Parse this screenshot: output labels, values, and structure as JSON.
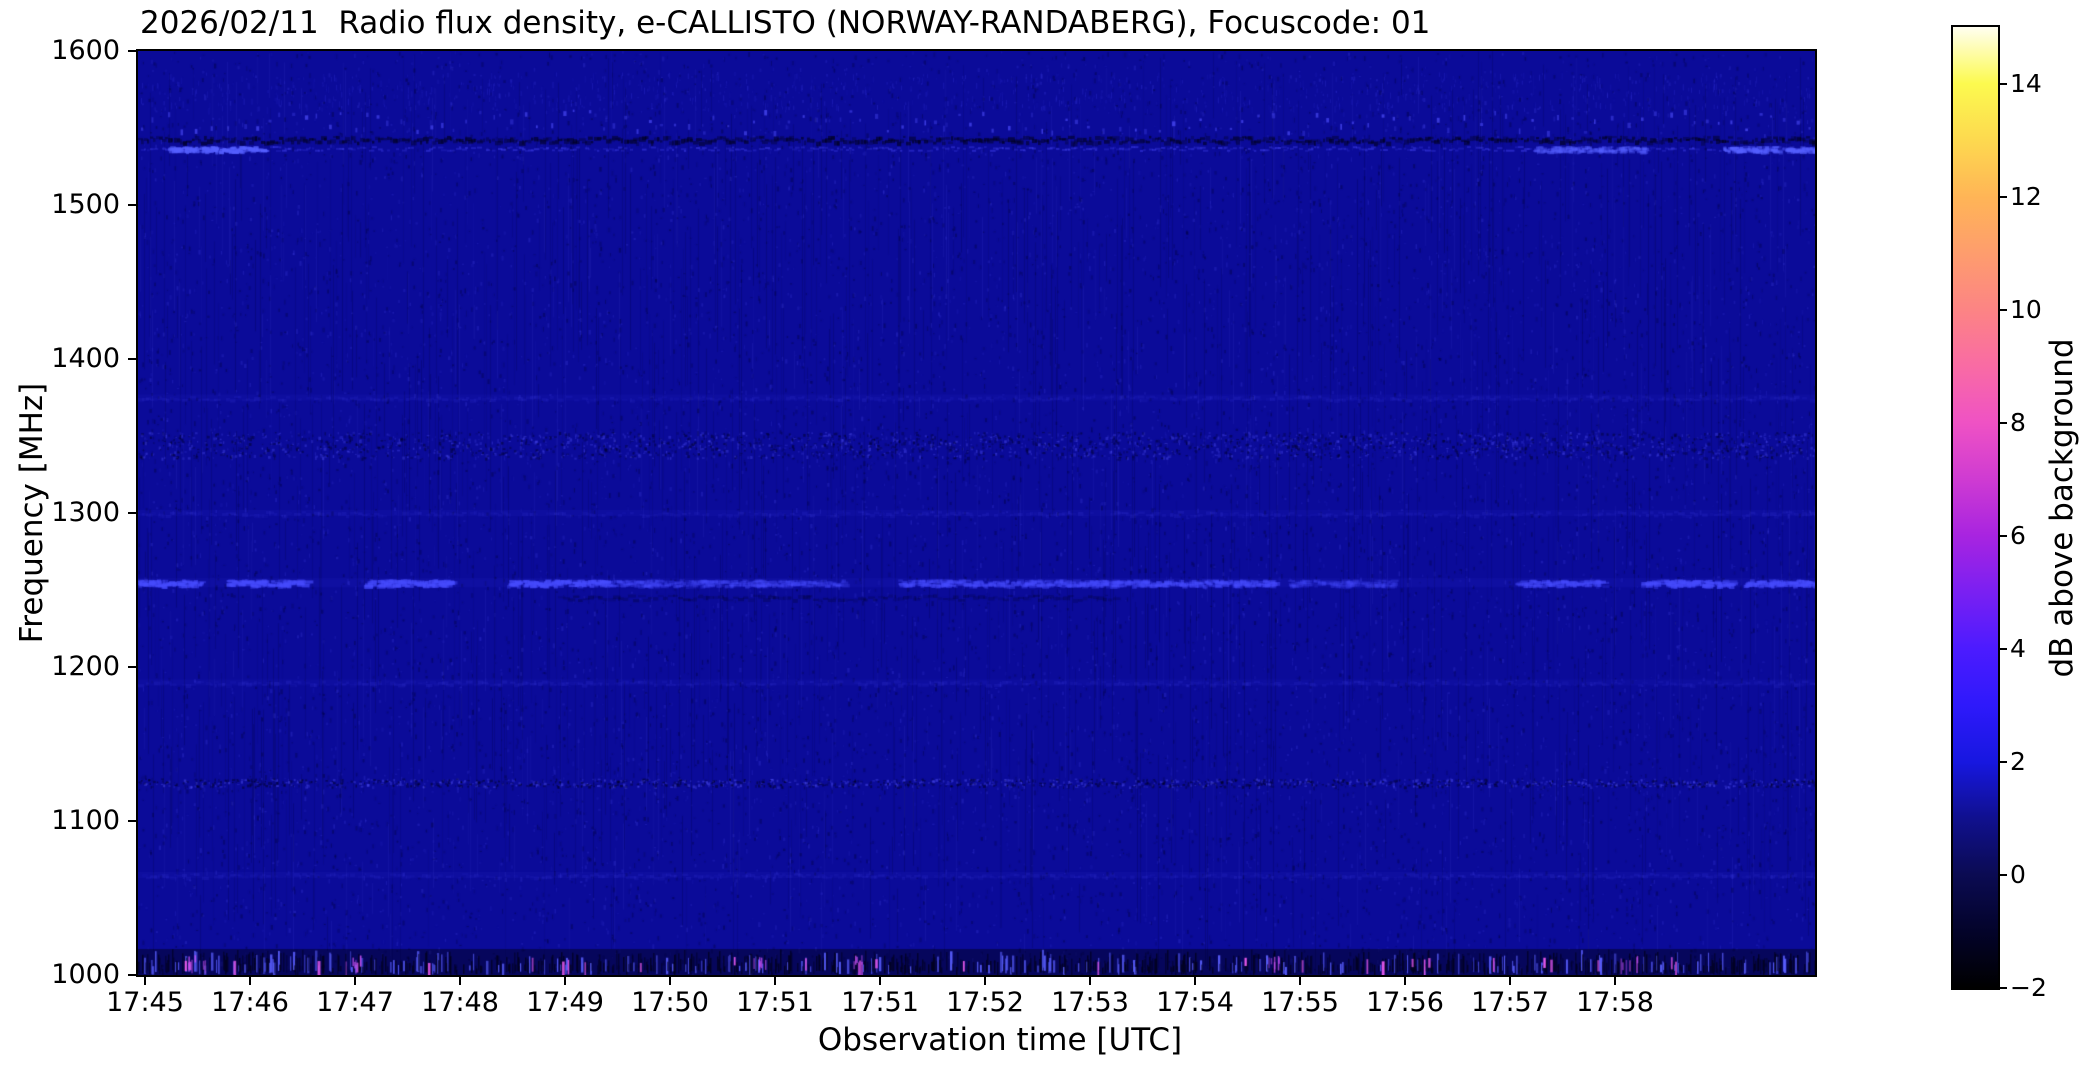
{
  "chart_data": {
    "type": "heatmap",
    "title": "2026/02/11  Radio flux density, e-CALLISTO (NORWAY-RANDABERG), Focuscode: 01",
    "date": "2026/02/11",
    "station": "NORWAY-RANDABERG",
    "focuscode": "01",
    "xlabel": "Observation time [UTC]",
    "ylabel": "Frequency [MHz]",
    "x_tick_labels": [
      "17:45",
      "17:46",
      "17:47",
      "17:48",
      "17:49",
      "17:50",
      "17:51",
      "17:51",
      "17:52",
      "17:53",
      "17:54",
      "17:55",
      "17:56",
      "17:57",
      "17:58"
    ],
    "y_tick_labels": [
      "1600",
      "1500",
      "1400",
      "1300",
      "1200",
      "1100",
      "1000"
    ],
    "ylim": [
      1000,
      1600
    ],
    "grid": false,
    "legend": null,
    "colors": {
      "plot_background": "#0b0b99",
      "noise_dark": "#00002d",
      "noise_bright": "#4646f0",
      "rfi_magenta": "#eb5af0",
      "axis": "#000000"
    },
    "colorbar": {
      "label": "dB above background",
      "range": [
        -2,
        15
      ],
      "ticks": [
        {
          "value": 14,
          "label": "14"
        },
        {
          "value": 12,
          "label": "12"
        },
        {
          "value": 10,
          "label": "10"
        },
        {
          "value": 8,
          "label": "8"
        },
        {
          "value": 6,
          "label": "6"
        },
        {
          "value": 4,
          "label": "4"
        },
        {
          "value": 2,
          "label": "2"
        },
        {
          "value": 0,
          "label": "0"
        },
        {
          "value": -2,
          "label": "−2"
        }
      ],
      "colormap": "gnuplot2-like",
      "stops": [
        [
          -2,
          "#000000"
        ],
        [
          -1,
          "#03032a"
        ],
        [
          0,
          "#0b0b52"
        ],
        [
          1,
          "#10108e"
        ],
        [
          2,
          "#1717e0"
        ],
        [
          3,
          "#2e19fb"
        ],
        [
          4,
          "#4c1bff"
        ],
        [
          5,
          "#7a20f2"
        ],
        [
          6,
          "#a824e0"
        ],
        [
          7,
          "#cf3bd2"
        ],
        [
          8,
          "#ef52c4"
        ],
        [
          9,
          "#f96ba4"
        ],
        [
          10,
          "#fc8484"
        ],
        [
          11,
          "#fe9d6d"
        ],
        [
          12,
          "#ffb556"
        ],
        [
          13,
          "#fdd94f"
        ],
        [
          14,
          "#fcfa4f"
        ],
        [
          15,
          "#fffef0"
        ]
      ]
    },
    "background_level_db": 0.9,
    "rfi_bands": [
      {
        "freq_mhz": 1555,
        "kind": "periodic-speckles",
        "level_db": 2.5
      },
      {
        "freq_mhz": 1543,
        "kind": "dark-band",
        "level_db": -0.5
      },
      {
        "freq_mhz": 1537,
        "kind": "intermittent-line",
        "level_db": 3.0
      },
      {
        "freq_mhz": 1375,
        "kind": "faint-line",
        "level_db": 1.5
      },
      {
        "freq_mhz": 1345,
        "kind": "speckle-band",
        "level_db": 2.0
      },
      {
        "freq_mhz": 1300,
        "kind": "faint-line",
        "level_db": 1.2
      },
      {
        "freq_mhz": 1255,
        "kind": "bright-dashes",
        "level_db": 3.5
      },
      {
        "freq_mhz": 1190,
        "kind": "faint-line",
        "level_db": 1.3
      },
      {
        "freq_mhz": 1125,
        "kind": "speckle-line",
        "level_db": 1.8
      },
      {
        "freq_mhz": 1065,
        "kind": "faint-line",
        "level_db": 1.1
      },
      {
        "freq_mhz": 1006,
        "kind": "broadband-noise",
        "level_db": 8.0
      }
    ]
  }
}
